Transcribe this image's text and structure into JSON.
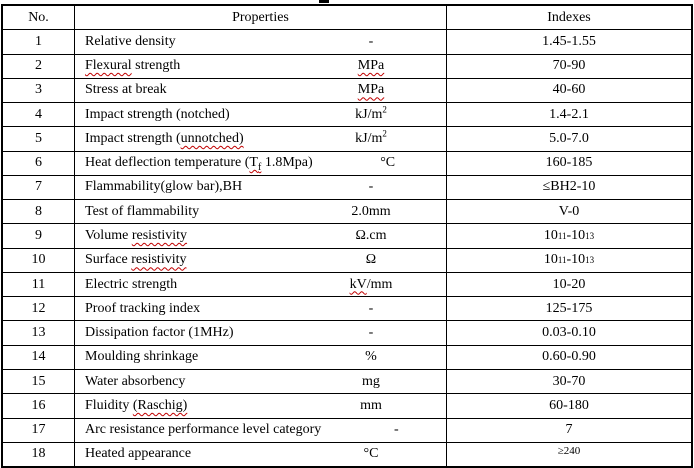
{
  "header": {
    "no": "No.",
    "properties": "Properties",
    "indexes": "Indexes"
  },
  "rows": [
    {
      "no": "1",
      "prop_a": "Relative density",
      "unit": "-",
      "index": "1.45-1.55"
    },
    {
      "no": "2",
      "prop_sq": "Flexural",
      "prop_b": " strength",
      "unit_sq": "MPa",
      "index": "70-90"
    },
    {
      "no": "3",
      "prop_a": "Stress at break",
      "unit_sq": "MPa",
      "index": "40-60"
    },
    {
      "no": "4",
      "prop_a": "Impact strength (notched)",
      "unit": "kJ/m",
      "unit_sup": "2",
      "index": "1.4-2.1"
    },
    {
      "no": "5",
      "prop_a": "Impact strength (",
      "prop_sq": "unnotched)",
      "unit": "kJ/m",
      "unit_sup": "2",
      "index": "5.0-7.0"
    },
    {
      "no": "6",
      "prop_a": "Heat deflection temperature (",
      "prop_sq_t": "T",
      "prop_sub": "f",
      "prop_b": " 1.8Mpa)",
      "unit": "°C",
      "index": "160-185"
    },
    {
      "no": "7",
      "prop_a": "Flammability(glow bar),BH",
      "unit": "-",
      "index": "≤BH2-10"
    },
    {
      "no": "8",
      "prop_a": "Test of flammability",
      "unit": "2.0mm",
      "index": "V-0"
    },
    {
      "no": "9",
      "prop_a": "Volume ",
      "prop_sq": "resistivity",
      "unit": "Ω.cm",
      "idx_a": "10",
      "idx_sup1": "11",
      "idx_b": "-10",
      "idx_sup2": "13"
    },
    {
      "no": "10",
      "prop_a": "Surface ",
      "prop_sq": "resistivity",
      "unit": "Ω",
      "idx_a": "10",
      "idx_sup1": "11",
      "idx_b": "-10",
      "idx_sup2": "13"
    },
    {
      "no": "11",
      "prop_a": "Electric strength",
      "unit_sq": "kV",
      "unit": "/mm",
      "index": "10-20"
    },
    {
      "no": "12",
      "prop_a": "Proof tracking index",
      "unit": "-",
      "index": "125-175"
    },
    {
      "no": "13",
      "prop_a": "Dissipation factor (1MHz)",
      "unit": "-",
      "index": "0.03-0.10"
    },
    {
      "no": "14",
      "prop_a": "Moulding shrinkage",
      "unit": "%",
      "index": "0.60-0.90"
    },
    {
      "no": "15",
      "prop_a": "Water absorbency",
      "unit": "mg",
      "index": "30-70"
    },
    {
      "no": "16",
      "prop_a": "Fluidity ",
      "prop_sq": "(Raschig)",
      "unit": "mm",
      "index": "60-180"
    },
    {
      "no": "17",
      "prop_a": "Arc resistance performance level category",
      "unit": "-",
      "index": "7"
    },
    {
      "no": "18",
      "prop_a": "Heated appearance",
      "unit": "°C",
      "index": "≥240"
    }
  ],
  "colors": {
    "border": "#000000",
    "squiggle": "#c00000",
    "background": "#ffffff"
  }
}
